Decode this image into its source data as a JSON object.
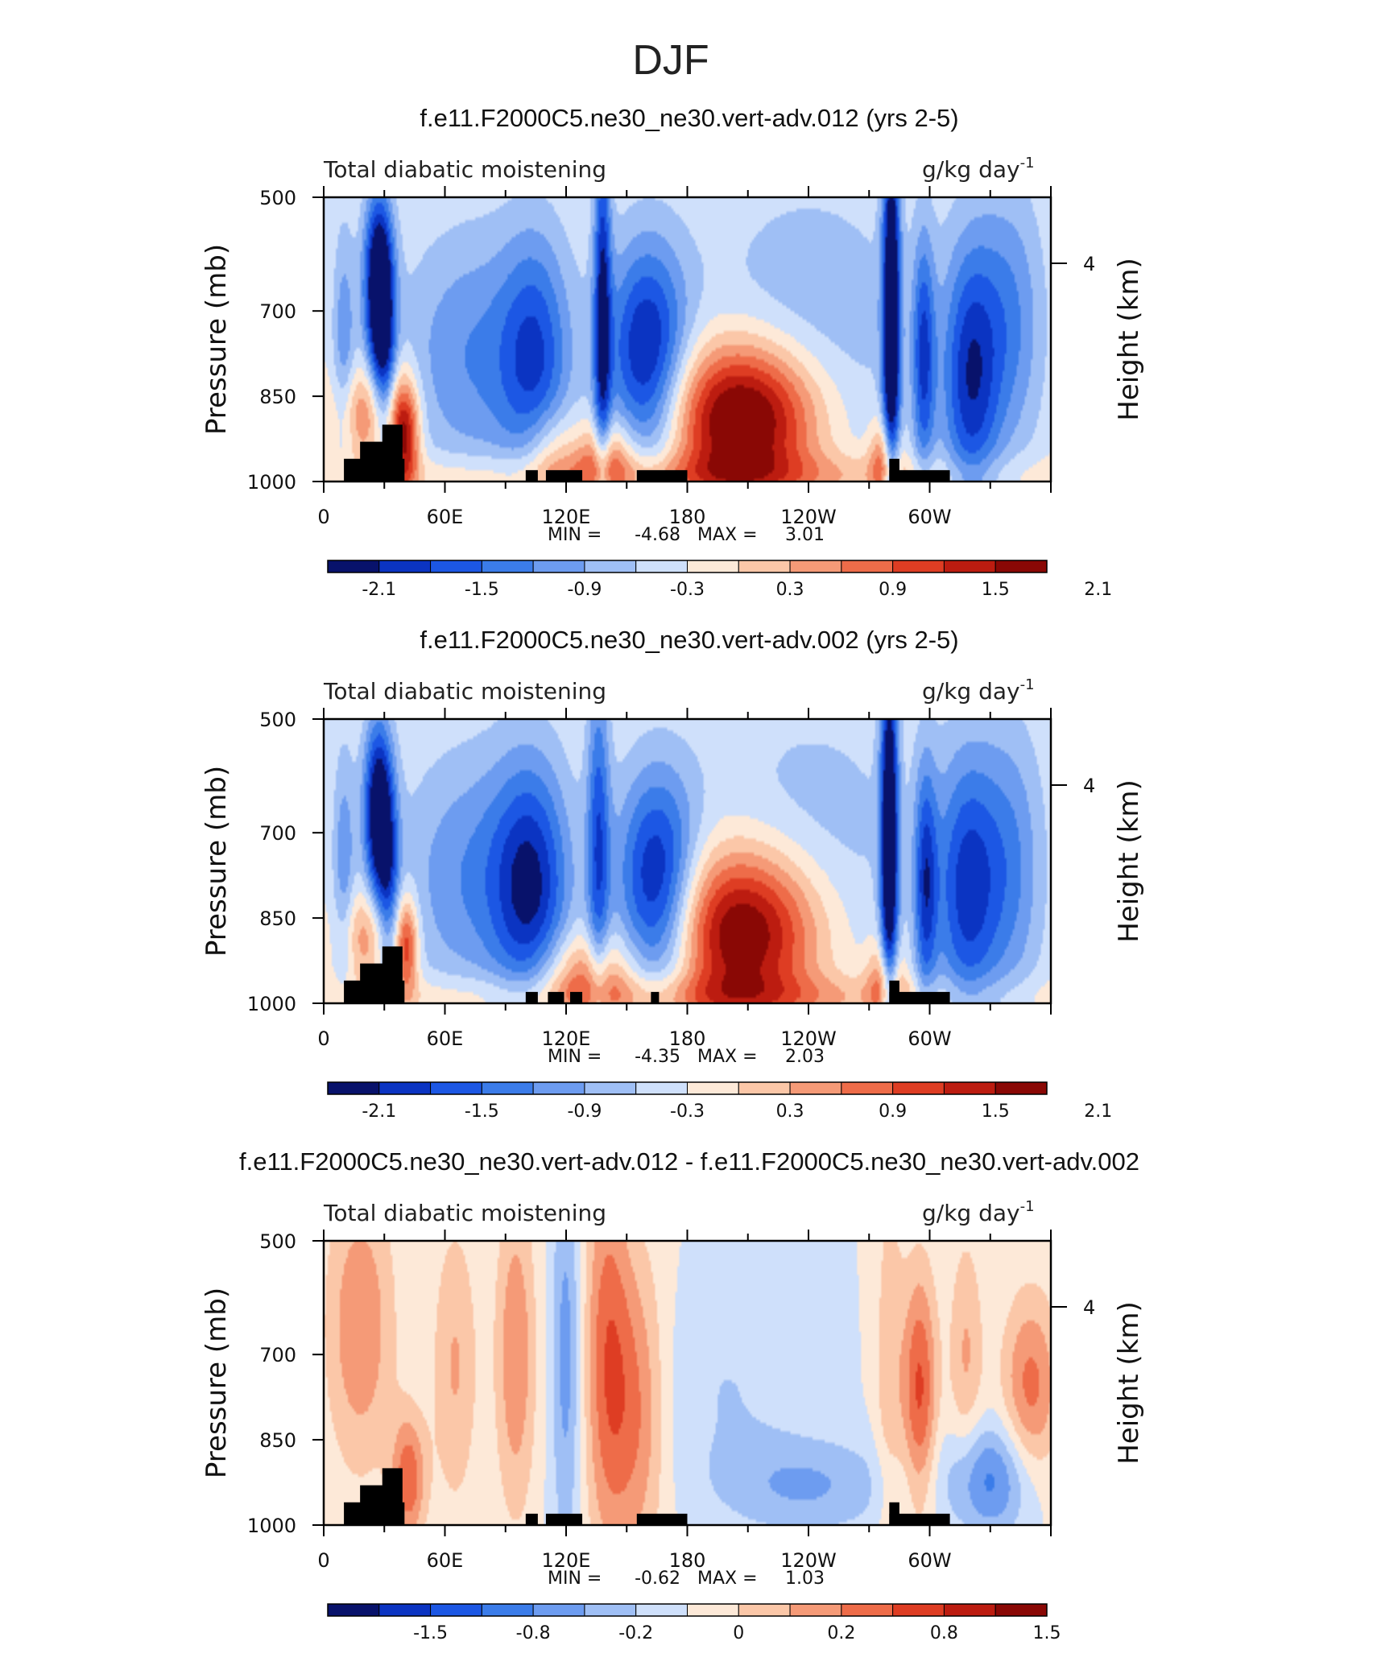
{
  "figure_title": "DJF",
  "chart_data": [
    {
      "type": "heatmap",
      "title": "f.e11.F2000C5.ne30_ne30.vert-adv.012 (yrs 2-5)",
      "left_label": "Total diabatic moistening",
      "units": "g/kg day",
      "units_exp": "-1",
      "ylabel": "Pressure (mb)",
      "y2label": "Height (km)",
      "yticks": [
        "500",
        "700",
        "850",
        "1000"
      ],
      "ytick_values": [
        500,
        700,
        850,
        1000
      ],
      "y2ticks": [
        "4"
      ],
      "xticks": [
        "0",
        "60E",
        "120E",
        "180",
        "120W",
        "60W"
      ],
      "xtick_values": [
        0,
        60,
        120,
        180,
        240,
        300
      ],
      "xlim": [
        0,
        360
      ],
      "ylim": [
        1000,
        500
      ],
      "min_label": "MIN =",
      "min_value": "-4.68",
      "max_label": "MAX =",
      "max_value": "3.01",
      "colorbar_labels": [
        "-2.1",
        "-1.5",
        "-0.9",
        "-0.3",
        "0.3",
        "0.9",
        "1.5",
        "2.1"
      ],
      "colorbar_colors": [
        "#08126b",
        "#0b34c2",
        "#1c57e4",
        "#3b7ce9",
        "#6d9cf0",
        "#9fbff5",
        "#cfe0fb",
        "#fde9d8",
        "#fbc7a8",
        "#f59a77",
        "#ee6c49",
        "#de3d23",
        "#bc1c10",
        "#8a0805"
      ],
      "features": [
        {
          "lon": 27,
          "p": 650,
          "wlon": 5,
          "wp": 110,
          "amp": -2.4
        },
        {
          "lon": 30,
          "p": 780,
          "wlon": 4,
          "wp": 130,
          "amp": -1.2
        },
        {
          "lon": 10,
          "p": 760,
          "wlon": 4,
          "wp": 150,
          "amp": -0.8
        },
        {
          "lon": 40,
          "p": 920,
          "wlon": 5,
          "wp": 70,
          "amp": 1.9
        },
        {
          "lon": 22,
          "p": 880,
          "wlon": 12,
          "wp": 60,
          "amp": 1.0
        },
        {
          "lon": 75,
          "p": 780,
          "wlon": 26,
          "wp": 160,
          "amp": -0.9
        },
        {
          "lon": 105,
          "p": 790,
          "wlon": 12,
          "wp": 160,
          "amp": -1.2
        },
        {
          "lon": 138,
          "p": 700,
          "wlon": 3,
          "wp": 250,
          "amp": -1.7
        },
        {
          "lon": 160,
          "p": 780,
          "wlon": 14,
          "wp": 140,
          "amp": -1.9
        },
        {
          "lon": 112,
          "p": 950,
          "wlon": 10,
          "wp": 60,
          "amp": 0.8
        },
        {
          "lon": 140,
          "p": 960,
          "wlon": 10,
          "wp": 50,
          "amp": 1.1
        },
        {
          "lon": 208,
          "p": 890,
          "wlon": 26,
          "wp": 95,
          "amp": 2.6
        },
        {
          "lon": 240,
          "p": 740,
          "wlon": 40,
          "wp": 200,
          "amp": -0.55
        },
        {
          "lon": 281,
          "p": 720,
          "wlon": 3,
          "wp": 260,
          "amp": -2.6
        },
        {
          "lon": 297,
          "p": 780,
          "wlon": 4,
          "wp": 150,
          "amp": -1.4
        },
        {
          "lon": 320,
          "p": 820,
          "wlon": 10,
          "wp": 170,
          "amp": -1.6
        },
        {
          "lon": 340,
          "p": 720,
          "wlon": 12,
          "wp": 170,
          "amp": -0.9
        },
        {
          "lon": 278,
          "p": 960,
          "wlon": 5,
          "wp": 50,
          "amp": 1.2
        },
        {
          "lon": 180,
          "p": 990,
          "wlon": 120,
          "wp": 30,
          "amp": 0.7
        }
      ],
      "topography": [
        {
          "lon0": 10,
          "lon1": 40,
          "ptop": 960
        },
        {
          "lon0": 18,
          "lon1": 35,
          "ptop": 930
        },
        {
          "lon0": 29,
          "lon1": 39,
          "ptop": 900
        },
        {
          "lon0": 100,
          "lon1": 106,
          "ptop": 980
        },
        {
          "lon0": 110,
          "lon1": 128,
          "ptop": 980
        },
        {
          "lon0": 155,
          "lon1": 180,
          "ptop": 980
        },
        {
          "lon0": 280,
          "lon1": 310,
          "ptop": 980
        },
        {
          "lon0": 280,
          "lon1": 285,
          "ptop": 960
        }
      ]
    },
    {
      "type": "heatmap",
      "title": "f.e11.F2000C5.ne30_ne30.vert-adv.002 (yrs 2-5)",
      "left_label": "Total diabatic moistening",
      "units": "g/kg day",
      "units_exp": "-1",
      "ylabel": "Pressure (mb)",
      "y2label": "Height (km)",
      "yticks": [
        "500",
        "700",
        "850",
        "1000"
      ],
      "ytick_values": [
        500,
        700,
        850,
        1000
      ],
      "y2ticks": [
        "4"
      ],
      "xticks": [
        "0",
        "60E",
        "120E",
        "180",
        "120W",
        "60W"
      ],
      "xtick_values": [
        0,
        60,
        120,
        180,
        240,
        300
      ],
      "xlim": [
        0,
        360
      ],
      "ylim": [
        1000,
        500
      ],
      "min_label": "MIN =",
      "min_value": "-4.35",
      "max_label": "MAX =",
      "max_value": "2.03",
      "colorbar_labels": [
        "-2.1",
        "-1.5",
        "-0.9",
        "-0.3",
        "0.3",
        "0.9",
        "1.5",
        "2.1"
      ],
      "colorbar_colors": [
        "#08126b",
        "#0b34c2",
        "#1c57e4",
        "#3b7ce9",
        "#6d9cf0",
        "#9fbff5",
        "#cfe0fb",
        "#fde9d8",
        "#fbc7a8",
        "#f59a77",
        "#ee6c49",
        "#de3d23",
        "#bc1c10",
        "#8a0805"
      ],
      "features": [
        {
          "lon": 27,
          "p": 660,
          "wlon": 5,
          "wp": 110,
          "amp": -2.3
        },
        {
          "lon": 32,
          "p": 800,
          "wlon": 4,
          "wp": 120,
          "amp": -1.1
        },
        {
          "lon": 10,
          "p": 760,
          "wlon": 4,
          "wp": 150,
          "amp": -0.8
        },
        {
          "lon": 41,
          "p": 900,
          "wlon": 4,
          "wp": 60,
          "amp": 1.5
        },
        {
          "lon": 22,
          "p": 880,
          "wlon": 10,
          "wp": 60,
          "amp": 0.9
        },
        {
          "lon": 75,
          "p": 780,
          "wlon": 26,
          "wp": 160,
          "amp": -0.9
        },
        {
          "lon": 103,
          "p": 800,
          "wlon": 13,
          "wp": 160,
          "amp": -1.5
        },
        {
          "lon": 136,
          "p": 720,
          "wlon": 4,
          "wp": 220,
          "amp": -1.3
        },
        {
          "lon": 165,
          "p": 800,
          "wlon": 14,
          "wp": 140,
          "amp": -2.0
        },
        {
          "lon": 130,
          "p": 950,
          "wlon": 18,
          "wp": 55,
          "amp": 1.0
        },
        {
          "lon": 208,
          "p": 875,
          "wlon": 27,
          "wp": 105,
          "amp": 2.4
        },
        {
          "lon": 240,
          "p": 740,
          "wlon": 40,
          "wp": 200,
          "amp": -0.5
        },
        {
          "lon": 280,
          "p": 720,
          "wlon": 3,
          "wp": 260,
          "amp": -2.5
        },
        {
          "lon": 298,
          "p": 790,
          "wlon": 4,
          "wp": 150,
          "amp": -1.4
        },
        {
          "lon": 318,
          "p": 800,
          "wlon": 11,
          "wp": 170,
          "amp": -1.5
        },
        {
          "lon": 340,
          "p": 760,
          "wlon": 12,
          "wp": 180,
          "amp": -0.9
        },
        {
          "lon": 278,
          "p": 960,
          "wlon": 6,
          "wp": 50,
          "amp": 1.1
        },
        {
          "lon": 180,
          "p": 990,
          "wlon": 120,
          "wp": 30,
          "amp": 0.7
        }
      ],
      "topography": [
        {
          "lon0": 10,
          "lon1": 40,
          "ptop": 960
        },
        {
          "lon0": 18,
          "lon1": 35,
          "ptop": 930
        },
        {
          "lon0": 29,
          "lon1": 39,
          "ptop": 900
        },
        {
          "lon0": 100,
          "lon1": 106,
          "ptop": 980
        },
        {
          "lon0": 111,
          "lon1": 119,
          "ptop": 980
        },
        {
          "lon0": 122,
          "lon1": 128,
          "ptop": 980
        },
        {
          "lon0": 162,
          "lon1": 166,
          "ptop": 980
        },
        {
          "lon0": 280,
          "lon1": 310,
          "ptop": 980
        },
        {
          "lon0": 280,
          "lon1": 285,
          "ptop": 960
        }
      ]
    },
    {
      "type": "heatmap",
      "title": "f.e11.F2000C5.ne30_ne30.vert-adv.012 - f.e11.F2000C5.ne30_ne30.vert-adv.002",
      "left_label": "Total diabatic moistening",
      "units": "g/kg day",
      "units_exp": "-1",
      "ylabel": "Pressure (mb)",
      "y2label": "Height (km)",
      "yticks": [
        "500",
        "700",
        "850",
        "1000"
      ],
      "ytick_values": [
        500,
        700,
        850,
        1000
      ],
      "y2ticks": [
        "4"
      ],
      "xticks": [
        "0",
        "60E",
        "120E",
        "180",
        "120W",
        "60W"
      ],
      "xtick_values": [
        0,
        60,
        120,
        180,
        240,
        300
      ],
      "xlim": [
        0,
        360
      ],
      "ylim": [
        1000,
        500
      ],
      "min_label": "MIN =",
      "min_value": "-0.62",
      "max_label": "MAX =",
      "max_value": "1.03",
      "colorbar_labels": [
        "-1.5",
        "-0.8",
        "-0.2",
        "0",
        "0.2",
        "0.8",
        "1.5"
      ],
      "colorbar_colors": [
        "#08126b",
        "#0b34c2",
        "#1c57e4",
        "#3b7ce9",
        "#6d9cf0",
        "#9fbff5",
        "#cfe0fb",
        "#fde9d8",
        "#fbc7a8",
        "#f59a77",
        "#ee6c49",
        "#de3d23",
        "#bc1c10",
        "#8a0805"
      ],
      "features": [
        {
          "lon": 18,
          "p": 650,
          "wlon": 12,
          "wp": 180,
          "amp": 0.35
        },
        {
          "lon": 42,
          "p": 920,
          "wlon": 6,
          "wp": 80,
          "amp": 0.45
        },
        {
          "lon": 65,
          "p": 720,
          "wlon": 8,
          "wp": 180,
          "amp": 0.25
        },
        {
          "lon": 95,
          "p": 700,
          "wlon": 7,
          "wp": 200,
          "amp": 0.35
        },
        {
          "lon": 120,
          "p": 700,
          "wlon": 5,
          "wp": 250,
          "amp": -0.3
        },
        {
          "lon": 140,
          "p": 700,
          "wlon": 8,
          "wp": 250,
          "amp": 0.4
        },
        {
          "lon": 155,
          "p": 800,
          "wlon": 10,
          "wp": 200,
          "amp": 0.35
        },
        {
          "lon": 200,
          "p": 760,
          "wlon": 25,
          "wp": 130,
          "amp": -0.12
        },
        {
          "lon": 240,
          "p": 930,
          "wlon": 30,
          "wp": 60,
          "amp": -0.25
        },
        {
          "lon": 280,
          "p": 720,
          "wlon": 5,
          "wp": 250,
          "amp": 0.2
        },
        {
          "lon": 295,
          "p": 760,
          "wlon": 6,
          "wp": 150,
          "amp": 0.5
        },
        {
          "lon": 330,
          "p": 920,
          "wlon": 15,
          "wp": 70,
          "amp": -0.4
        },
        {
          "lon": 350,
          "p": 760,
          "wlon": 10,
          "wp": 120,
          "amp": 0.4
        },
        {
          "lon": 318,
          "p": 700,
          "wlon": 6,
          "wp": 150,
          "amp": 0.25
        }
      ],
      "topography": [
        {
          "lon0": 10,
          "lon1": 40,
          "ptop": 960
        },
        {
          "lon0": 18,
          "lon1": 35,
          "ptop": 930
        },
        {
          "lon0": 29,
          "lon1": 39,
          "ptop": 900
        },
        {
          "lon0": 100,
          "lon1": 106,
          "ptop": 980
        },
        {
          "lon0": 110,
          "lon1": 128,
          "ptop": 980
        },
        {
          "lon0": 155,
          "lon1": 180,
          "ptop": 980
        },
        {
          "lon0": 280,
          "lon1": 310,
          "ptop": 980
        },
        {
          "lon0": 280,
          "lon1": 285,
          "ptop": 960
        }
      ]
    }
  ]
}
